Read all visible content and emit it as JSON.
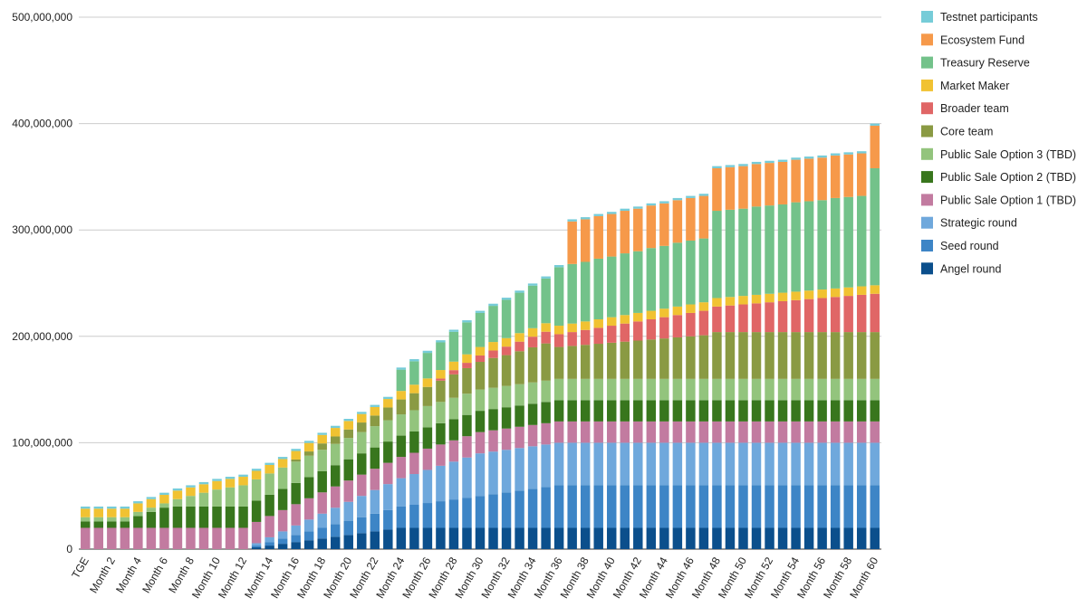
{
  "chart_data": {
    "type": "stacked-bar",
    "title": "",
    "xlabel": "",
    "ylabel": "",
    "ylim": [
      0,
      500000000
    ],
    "y_ticks": [
      0,
      100000000,
      200000000,
      300000000,
      400000000,
      500000000
    ],
    "y_tick_labels": [
      "0",
      "100,000,000",
      "200,000,000",
      "300,000,000",
      "400,000,000",
      "500,000,000"
    ],
    "grid": true,
    "legend_position": "right",
    "categories": [
      "TGE",
      "Month 1",
      "Month 2",
      "Month 3",
      "Month 4",
      "Month 5",
      "Month 6",
      "Month 7",
      "Month 8",
      "Month 9",
      "Month 10",
      "Month 11",
      "Month 12",
      "Month 13",
      "Month 14",
      "Month 15",
      "Month 16",
      "Month 17",
      "Month 18",
      "Month 19",
      "Month 20",
      "Month 21",
      "Month 22",
      "Month 23",
      "Month 24",
      "Month 25",
      "Month 26",
      "Month 27",
      "Month 28",
      "Month 29",
      "Month 30",
      "Month 31",
      "Month 32",
      "Month 33",
      "Month 34",
      "Month 35",
      "Month 36",
      "Month 37",
      "Month 38",
      "Month 39",
      "Month 40",
      "Month 41",
      "Month 42",
      "Month 43",
      "Month 44",
      "Month 45",
      "Month 46",
      "Month 47",
      "Month 48",
      "Month 49",
      "Month 50",
      "Month 51",
      "Month 52",
      "Month 53",
      "Month 54",
      "Month 55",
      "Month 56",
      "Month 57",
      "Month 58",
      "Month 59",
      "Month 60"
    ],
    "visible_tick_labels": [
      "TGE",
      "Month 2",
      "Month 4",
      "Month 6",
      "Month 8",
      "Month 10",
      "Month 12",
      "Month 14",
      "Month 16",
      "Month 18",
      "Month 20",
      "Month 22",
      "Month 24",
      "Month 26",
      "Month 28",
      "Month 30",
      "Month 32",
      "Month 34",
      "Month 36",
      "Month 38",
      "Month 40",
      "Month 42",
      "Month 44",
      "Month 46",
      "Month 48",
      "Month 50",
      "Month 52",
      "Month 54",
      "Month 56",
      "Month 58",
      "Month 60"
    ],
    "series": [
      {
        "name": "Angel round",
        "color": "#0b4f8c",
        "values": [
          0,
          0,
          0,
          0,
          0,
          0,
          0,
          0,
          0,
          0,
          0,
          0,
          0,
          1666667,
          3333333,
          5000000,
          6666667,
          8333333,
          10000000,
          11666667,
          13333333,
          15000000,
          16666667,
          18333333,
          20000000,
          20000000,
          20000000,
          20000000,
          20000000,
          20000000,
          20000000,
          20000000,
          20000000,
          20000000,
          20000000,
          20000000,
          20000000,
          20000000,
          20000000,
          20000000,
          20000000,
          20000000,
          20000000,
          20000000,
          20000000,
          20000000,
          20000000,
          20000000,
          20000000,
          20000000,
          20000000,
          20000000,
          20000000,
          20000000,
          20000000,
          20000000,
          20000000,
          20000000,
          20000000,
          20000000,
          20000000
        ],
        "note": "values stabilize at ~20M from Month 24"
      },
      {
        "name": "Seed round",
        "color": "#3d85c6",
        "values": [
          0,
          0,
          0,
          0,
          0,
          0,
          0,
          0,
          0,
          0,
          0,
          0,
          0,
          1666667,
          3333333,
          5000000,
          6666667,
          8333333,
          10000000,
          11666667,
          13333333,
          15000000,
          16666667,
          18333333,
          20000000,
          21666667,
          23333333,
          25000000,
          26666667,
          28333333,
          30000000,
          31666667,
          33333333,
          35000000,
          36666667,
          38333333,
          40000000,
          40000000,
          40000000,
          40000000,
          40000000,
          40000000,
          40000000,
          40000000,
          40000000,
          40000000,
          40000000,
          40000000,
          40000000,
          40000000,
          40000000,
          40000000,
          40000000,
          40000000,
          40000000,
          40000000,
          40000000,
          40000000,
          40000000,
          40000000,
          40000000
        ]
      },
      {
        "name": "Strategic round",
        "color": "#6fa8dc",
        "values": [
          0,
          0,
          0,
          0,
          0,
          0,
          0,
          0,
          0,
          0,
          0,
          0,
          0,
          2222222,
          4444444,
          6666667,
          8888889,
          11111111,
          13333333,
          15555556,
          17777778,
          20000000,
          22222222,
          24444444,
          26666667,
          28888889,
          31111111,
          33333333,
          35555556,
          37777778,
          40000000,
          40000000,
          40000000,
          40000000,
          40000000,
          40000000,
          40000000,
          40000000,
          40000000,
          40000000,
          40000000,
          40000000,
          40000000,
          40000000,
          40000000,
          40000000,
          40000000,
          40000000,
          40000000,
          40000000,
          40000000,
          40000000,
          40000000,
          40000000,
          40000000,
          40000000,
          40000000,
          40000000,
          40000000,
          40000000,
          40000000
        ]
      },
      {
        "name": "Public Sale Option 1 (TBD)",
        "color": "#c27ba0",
        "values": [
          20000000,
          20000000,
          20000000,
          20000000,
          20000000,
          20000000,
          20000000,
          20000000,
          20000000,
          20000000,
          20000000,
          20000000,
          20000000,
          20000000,
          20000000,
          20000000,
          20000000,
          20000000,
          20000000,
          20000000,
          20000000,
          20000000,
          20000000,
          20000000,
          20000000,
          20000000,
          20000000,
          20000000,
          20000000,
          20000000,
          20000000,
          20000000,
          20000000,
          20000000,
          20000000,
          20000000,
          20000000,
          20000000,
          20000000,
          20000000,
          20000000,
          20000000,
          20000000,
          20000000,
          20000000,
          20000000,
          20000000,
          20000000,
          20000000,
          20000000,
          20000000,
          20000000,
          20000000,
          20000000,
          20000000,
          20000000,
          20000000,
          20000000,
          20000000,
          20000000,
          20000000
        ]
      },
      {
        "name": "Public Sale Option 2 (TBD)",
        "color": "#38761d",
        "values": [
          6000000,
          6000000,
          6000000,
          6000000,
          11000000,
          15000000,
          19000000,
          20000000,
          20000000,
          20000000,
          20000000,
          20000000,
          20000000,
          20000000,
          20000000,
          20000000,
          20000000,
          20000000,
          20000000,
          20000000,
          20000000,
          20000000,
          20000000,
          20000000,
          20000000,
          20000000,
          20000000,
          20000000,
          20000000,
          20000000,
          20000000,
          20000000,
          20000000,
          20000000,
          20000000,
          20000000,
          20000000,
          20000000,
          20000000,
          20000000,
          20000000,
          20000000,
          20000000,
          20000000,
          20000000,
          20000000,
          20000000,
          20000000,
          20000000,
          20000000,
          20000000,
          20000000,
          20000000,
          20000000,
          20000000,
          20000000,
          20000000,
          20000000,
          20000000,
          20000000,
          20000000
        ]
      },
      {
        "name": "Public Sale Option 3 (TBD)",
        "color": "#93c47d",
        "values": [
          4000000,
          4000000,
          4000000,
          4000000,
          4000000,
          4000000,
          4000000,
          7000000,
          10000000,
          13000000,
          16000000,
          18000000,
          20000000,
          20000000,
          20000000,
          20000000,
          20000000,
          20000000,
          20000000,
          20000000,
          20000000,
          20000000,
          20000000,
          20000000,
          20000000,
          20000000,
          20000000,
          20000000,
          20000000,
          20000000,
          20000000,
          20000000,
          20000000,
          20000000,
          20000000,
          20000000,
          20000000,
          20000000,
          20000000,
          20000000,
          20000000,
          20000000,
          20000000,
          20000000,
          20000000,
          20000000,
          20000000,
          20000000,
          20000000,
          20000000,
          20000000,
          20000000,
          20000000,
          20000000,
          20000000,
          20000000,
          20000000,
          20000000,
          20000000,
          20000000,
          20000000
        ]
      },
      {
        "name": "Core team",
        "color": "#8a9a43",
        "values": [
          0,
          0,
          0,
          0,
          0,
          0,
          0,
          0,
          0,
          0,
          0,
          0,
          0,
          0,
          0,
          0,
          2000000,
          4000000,
          6000000,
          7000000,
          8000000,
          9000000,
          10000000,
          12000000,
          14000000,
          16000000,
          18000000,
          20000000,
          22000000,
          24000000,
          26000000,
          28000000,
          29000000,
          31000000,
          33000000,
          35000000,
          30000000,
          31000000,
          32000000,
          33000000,
          34000000,
          35000000,
          36000000,
          37000000,
          38000000,
          39000000,
          40000000,
          41000000,
          44000000,
          44000000,
          44000000,
          44000000,
          44000000,
          44000000,
          44000000,
          44000000,
          44000000,
          44000000,
          44000000,
          44000000,
          44000000
        ]
      },
      {
        "name": "Broader team",
        "color": "#e06666",
        "values": [
          0,
          0,
          0,
          0,
          0,
          0,
          0,
          0,
          0,
          0,
          0,
          0,
          0,
          0,
          0,
          0,
          0,
          0,
          0,
          0,
          0,
          0,
          0,
          0,
          0,
          0,
          0,
          2000000,
          4000000,
          5000000,
          6000000,
          7000000,
          8000000,
          9000000,
          10000000,
          11000000,
          12000000,
          13000000,
          14000000,
          15000000,
          16000000,
          17000000,
          18000000,
          19000000,
          20000000,
          21000000,
          22000000,
          23000000,
          24000000,
          25000000,
          26000000,
          27000000,
          28000000,
          29000000,
          30000000,
          31000000,
          32000000,
          33000000,
          34000000,
          35000000,
          36000000
        ]
      },
      {
        "name": "Market Maker",
        "color": "#f1c232",
        "values": [
          8000000,
          8000000,
          8000000,
          8000000,
          8000000,
          8000000,
          8000000,
          8000000,
          8000000,
          8000000,
          8000000,
          8000000,
          8000000,
          8000000,
          8000000,
          8000000,
          8000000,
          8000000,
          8000000,
          8000000,
          8000000,
          8000000,
          8000000,
          8000000,
          8000000,
          8000000,
          8000000,
          8000000,
          8000000,
          8000000,
          8000000,
          8000000,
          8000000,
          8000000,
          8000000,
          8000000,
          8000000,
          8000000,
          8000000,
          8000000,
          8000000,
          8000000,
          8000000,
          8000000,
          8000000,
          8000000,
          8000000,
          8000000,
          8000000,
          8000000,
          8000000,
          8000000,
          8000000,
          8000000,
          8000000,
          8000000,
          8000000,
          8000000,
          8000000,
          8000000,
          8000000
        ]
      },
      {
        "name": "Treasury Reserve",
        "color": "#73c28a",
        "values": [
          0,
          0,
          0,
          0,
          0,
          0,
          0,
          0,
          0,
          0,
          0,
          0,
          0,
          0,
          0,
          0,
          0,
          0,
          0,
          0,
          0,
          0,
          0,
          0,
          20000000,
          22000000,
          24000000,
          26000000,
          28000000,
          30000000,
          32000000,
          34000000,
          36000000,
          38000000,
          40000000,
          42000000,
          55000000,
          56000000,
          56000000,
          57000000,
          57000000,
          58000000,
          58000000,
          59000000,
          59000000,
          60000000,
          60000000,
          60000000,
          82000000,
          82000000,
          82000000,
          83000000,
          83000000,
          83000000,
          84000000,
          84000000,
          84000000,
          85000000,
          85000000,
          85000000,
          110000000
        ]
      },
      {
        "name": "Ecosystem Fund",
        "color": "#f6994a",
        "values": [
          0,
          0,
          0,
          0,
          0,
          0,
          0,
          0,
          0,
          0,
          0,
          0,
          0,
          0,
          0,
          0,
          0,
          0,
          0,
          0,
          0,
          0,
          0,
          0,
          0,
          0,
          0,
          0,
          0,
          0,
          0,
          0,
          0,
          0,
          0,
          0,
          0,
          40000000,
          40000000,
          40000000,
          40000000,
          40000000,
          40000000,
          40000000,
          40000000,
          40000000,
          40000000,
          40000000,
          40000000,
          40000000,
          40000000,
          40000000,
          40000000,
          40000000,
          40000000,
          40000000,
          40000000,
          40000000,
          40000000,
          40000000,
          40000000
        ]
      },
      {
        "name": "Testnet participants",
        "color": "#76ccd8",
        "values": [
          2000000,
          2000000,
          2000000,
          2000000,
          2000000,
          2000000,
          2000000,
          2000000,
          2000000,
          2000000,
          2000000,
          2000000,
          2000000,
          2000000,
          2000000,
          2000000,
          2000000,
          2000000,
          2000000,
          2000000,
          2000000,
          2000000,
          2000000,
          2000000,
          2000000,
          2000000,
          2000000,
          2000000,
          2000000,
          2000000,
          2000000,
          2000000,
          2000000,
          2000000,
          2000000,
          2000000,
          2000000,
          2000000,
          2000000,
          2000000,
          2000000,
          2000000,
          2000000,
          2000000,
          2000000,
          2000000,
          2000000,
          2000000,
          2000000,
          2000000,
          2000000,
          2000000,
          2000000,
          2000000,
          2000000,
          2000000,
          2000000,
          2000000,
          2000000,
          2000000,
          2000000
        ]
      }
    ]
  }
}
